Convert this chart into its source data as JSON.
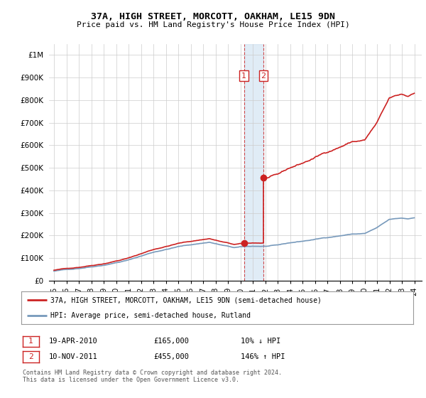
{
  "title": "37A, HIGH STREET, MORCOTT, OAKHAM, LE15 9DN",
  "subtitle": "Price paid vs. HM Land Registry's House Price Index (HPI)",
  "legend_line1": "37A, HIGH STREET, MORCOTT, OAKHAM, LE15 9DN (semi-detached house)",
  "legend_line2": "HPI: Average price, semi-detached house, Rutland",
  "footer": "Contains HM Land Registry data © Crown copyright and database right 2024.\nThis data is licensed under the Open Government Licence v3.0.",
  "transaction1": {
    "label": "1",
    "date": "19-APR-2010",
    "price": "£165,000",
    "hpi": "10% ↓ HPI"
  },
  "transaction2": {
    "label": "2",
    "date": "10-NOV-2011",
    "price": "£455,000",
    "hpi": "146% ↑ HPI"
  },
  "ylim": [
    0,
    1050000
  ],
  "yticks": [
    0,
    100000,
    200000,
    300000,
    400000,
    500000,
    600000,
    700000,
    800000,
    900000,
    1000000
  ],
  "ytick_labels": [
    "£0",
    "£100K",
    "£200K",
    "£300K",
    "£400K",
    "£500K",
    "£600K",
    "£700K",
    "£800K",
    "£900K",
    "£1M"
  ],
  "hpi_color": "#7799bb",
  "price_color": "#cc2222",
  "bg_color": "#ffffff",
  "grid_color": "#cccccc",
  "transaction1_x": 2010.29,
  "transaction2_x": 2011.86,
  "transaction1_y": 165000,
  "transaction2_y": 455000,
  "xtick_years": [
    1995,
    1996,
    1997,
    1998,
    1999,
    2000,
    2001,
    2002,
    2003,
    2004,
    2005,
    2006,
    2007,
    2008,
    2009,
    2010,
    2011,
    2012,
    2013,
    2014,
    2015,
    2016,
    2017,
    2018,
    2019,
    2020,
    2021,
    2022,
    2023,
    2024
  ]
}
